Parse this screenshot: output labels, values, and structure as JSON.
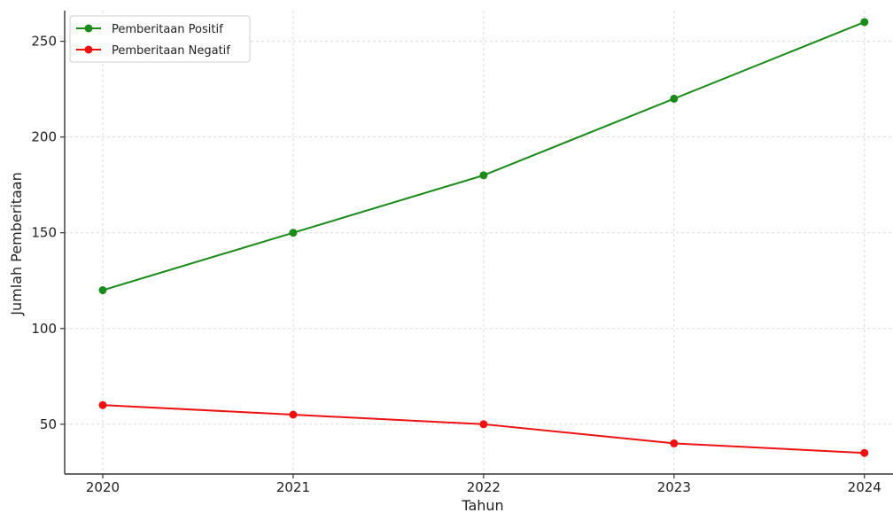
{
  "chart_data": {
    "type": "line",
    "title": "",
    "xlabel": "Tahun",
    "ylabel": "Jumlah Pemberitaan",
    "x": [
      2020,
      2021,
      2022,
      2023,
      2024
    ],
    "xticks": [
      "2020",
      "2021",
      "2022",
      "2023",
      "2024"
    ],
    "yticks": [
      50,
      100,
      150,
      200,
      250
    ],
    "ylim": [
      24,
      266
    ],
    "xlim": [
      2019.8,
      2024.15
    ],
    "grid": true,
    "legend_position": "top-left",
    "series": [
      {
        "name": "Pemberitaan Positif",
        "color": "#1a8a1a",
        "values": [
          120,
          150,
          180,
          220,
          260
        ]
      },
      {
        "name": "Pemberitaan Negatif",
        "color": "#ee1111",
        "values": [
          60,
          55,
          50,
          40,
          35
        ]
      }
    ]
  }
}
